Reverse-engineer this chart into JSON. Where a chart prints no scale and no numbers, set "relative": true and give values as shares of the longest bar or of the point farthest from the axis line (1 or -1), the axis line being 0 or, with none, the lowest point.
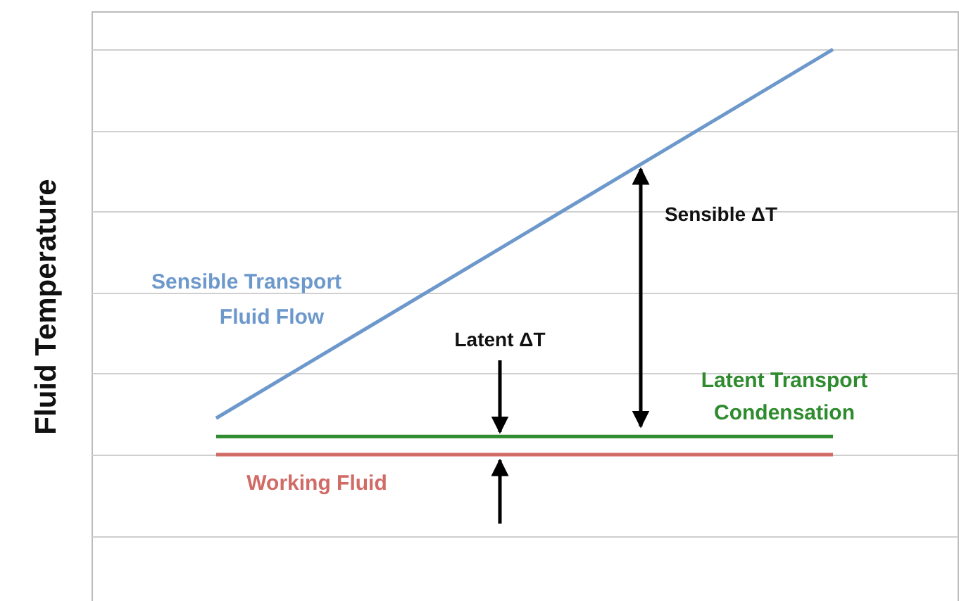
{
  "chart_data": {
    "type": "line",
    "relative": true,
    "ylabel": "Fluid Temperature",
    "grid": true,
    "categories": [
      null,
      null
    ],
    "series": [
      {
        "name": "Sensible Transport Fluid Flow",
        "color": "#6d98cc",
        "values": [
          0.09,
          1
        ]
      },
      {
        "name": "Latent Transport Condensation",
        "color": "#2e8b2e",
        "values": [
          0.045,
          0.045
        ]
      },
      {
        "name": "Working Fluid",
        "color": "#d16b66",
        "values": [
          0,
          0
        ]
      }
    ],
    "annotations": [
      "Latent ΔT",
      "Sensible ΔT"
    ]
  }
}
